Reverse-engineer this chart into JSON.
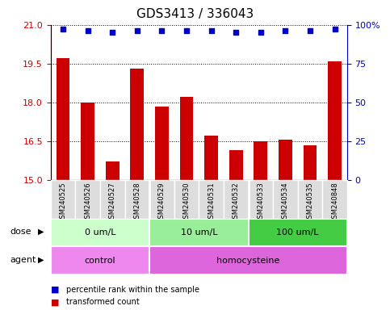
{
  "title": "GDS3413 / 336043",
  "samples": [
    "GSM240525",
    "GSM240526",
    "GSM240527",
    "GSM240528",
    "GSM240529",
    "GSM240530",
    "GSM240531",
    "GSM240532",
    "GSM240533",
    "GSM240534",
    "GSM240535",
    "GSM240848"
  ],
  "bar_values": [
    19.7,
    18.0,
    15.7,
    19.3,
    17.85,
    18.2,
    16.7,
    16.15,
    16.5,
    16.55,
    16.35,
    19.6
  ],
  "percentile_values": [
    97,
    96,
    95,
    96,
    96,
    96,
    96,
    95,
    95,
    96,
    96,
    97
  ],
  "bar_color": "#cc0000",
  "dot_color": "#0000cc",
  "ylim_left": [
    15,
    21
  ],
  "ylim_right": [
    0,
    100
  ],
  "yticks_left": [
    15,
    16.5,
    18,
    19.5,
    21
  ],
  "yticks_right": [
    0,
    25,
    50,
    75,
    100
  ],
  "dose_groups": [
    {
      "label": "0 um/L",
      "start": 0,
      "end": 4,
      "color": "#ccffcc"
    },
    {
      "label": "10 um/L",
      "start": 4,
      "end": 8,
      "color": "#99ee99"
    },
    {
      "label": "100 um/L",
      "start": 8,
      "end": 12,
      "color": "#44cc44"
    }
  ],
  "agent_groups": [
    {
      "label": "control",
      "start": 0,
      "end": 4,
      "color": "#ee88ee"
    },
    {
      "label": "homocysteine",
      "start": 4,
      "end": 12,
      "color": "#dd66dd"
    }
  ],
  "dose_label": "dose",
  "agent_label": "agent",
  "legend_bar_label": "transformed count",
  "legend_dot_label": "percentile rank within the sample",
  "xticklabel_bg": "#dddddd",
  "title_fontsize": 11,
  "tick_fontsize": 8,
  "bar_width": 0.55
}
